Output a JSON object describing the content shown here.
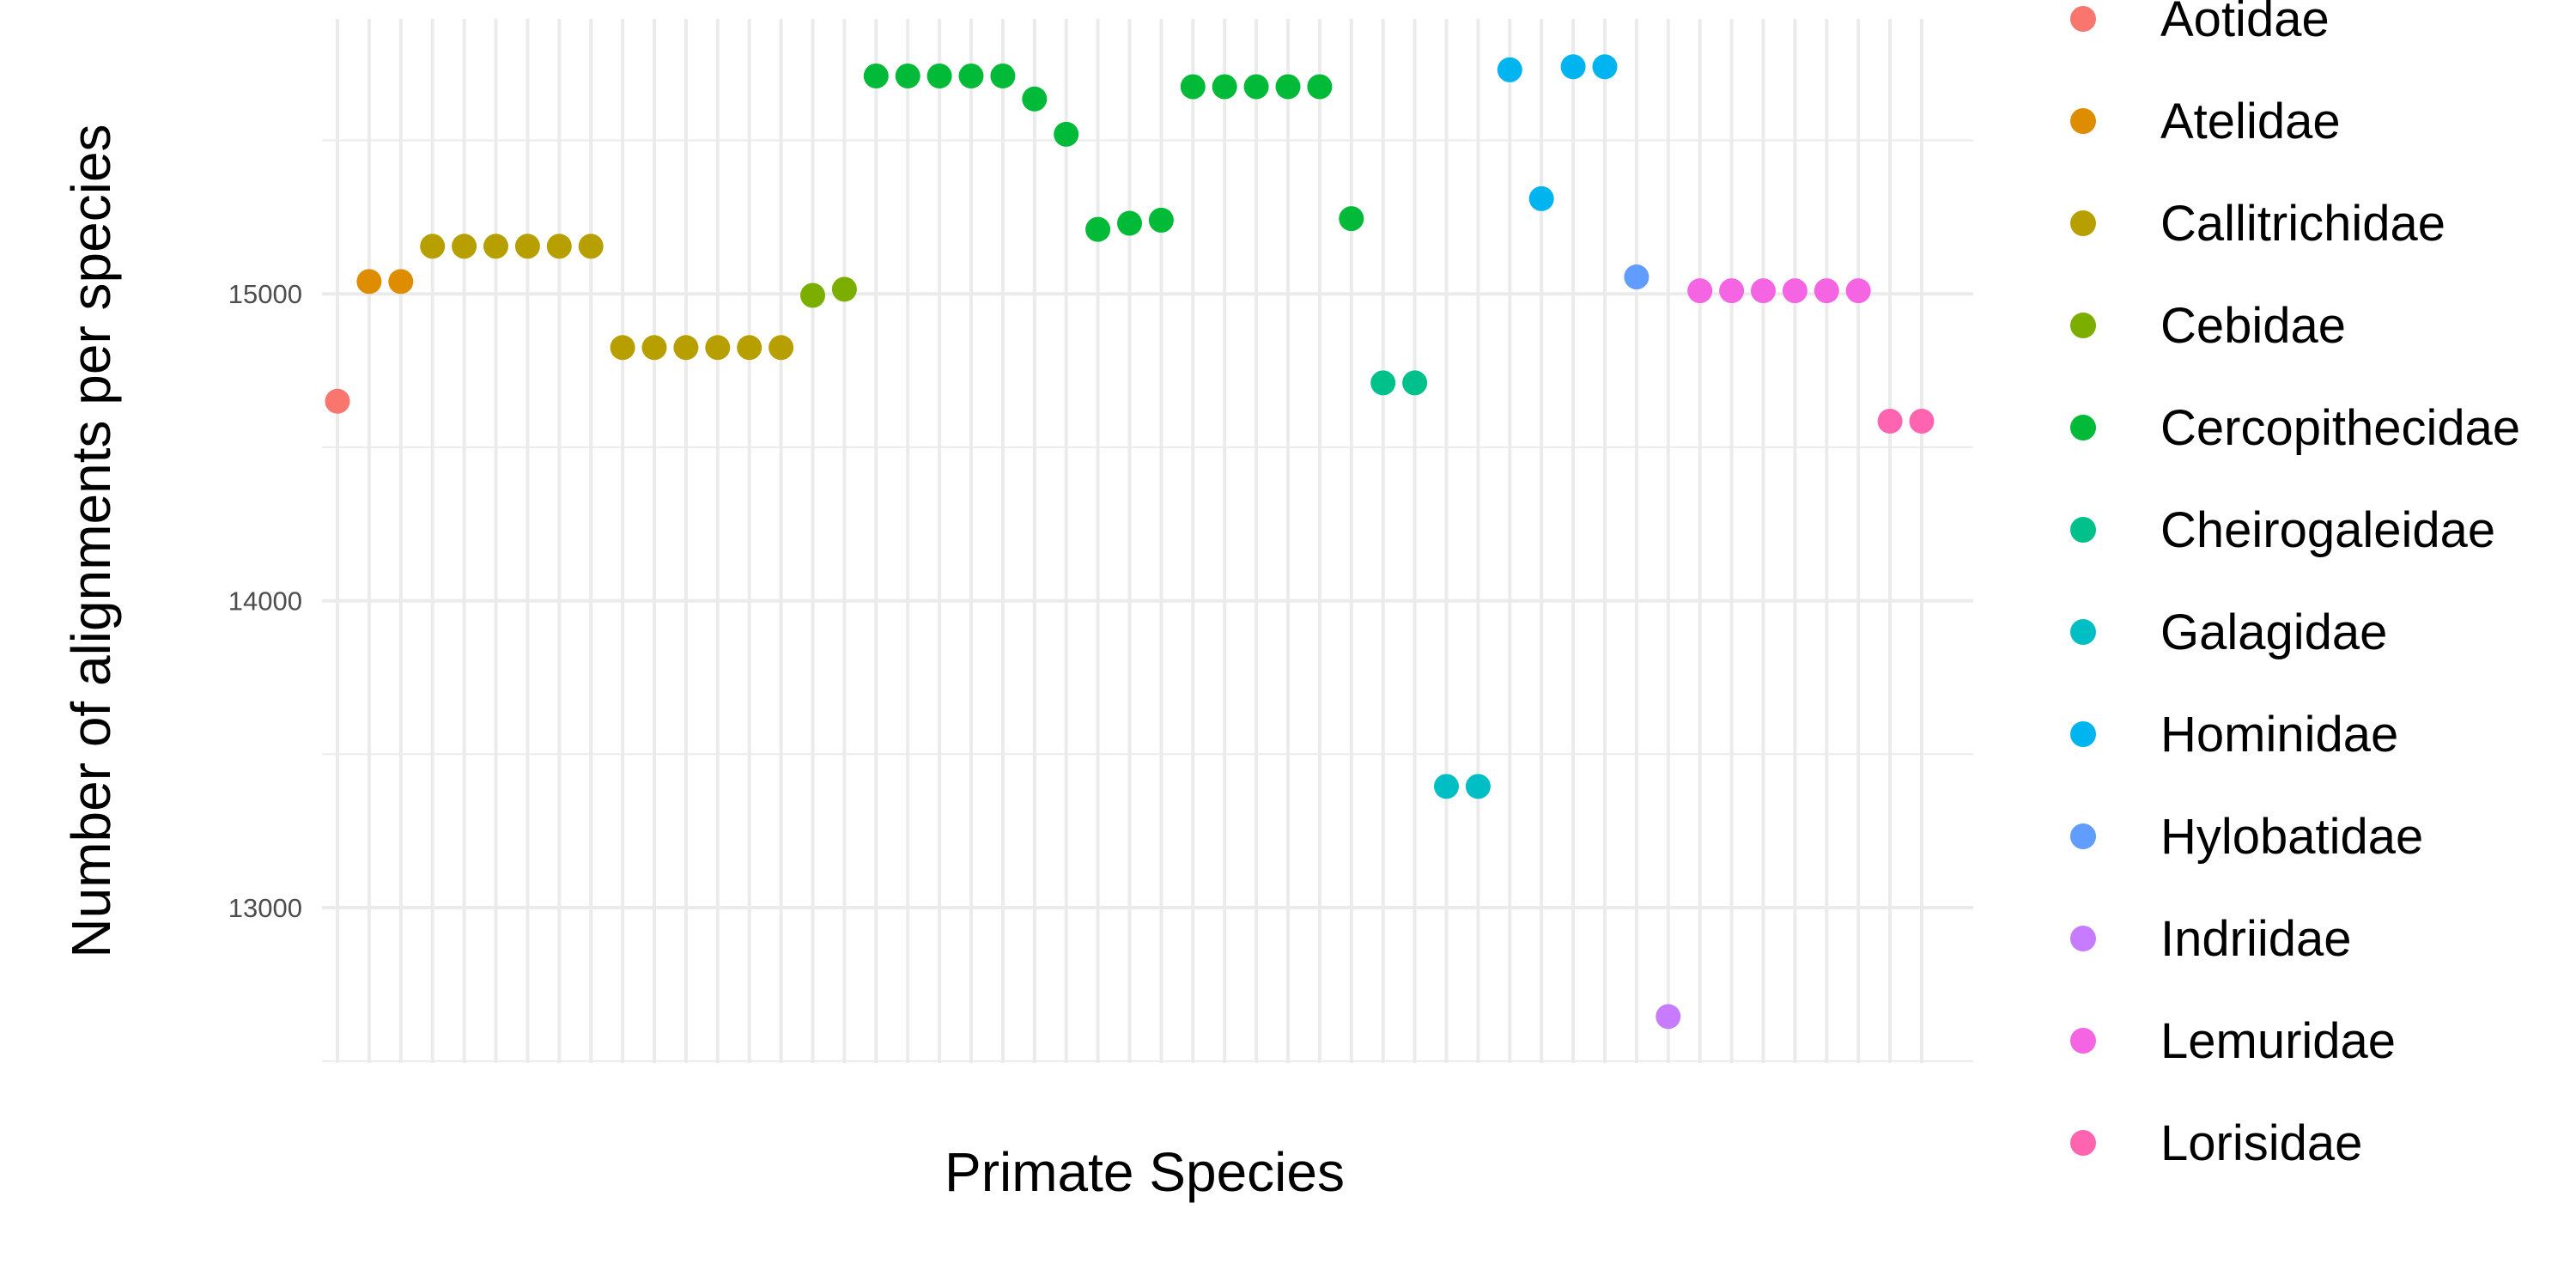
{
  "chart_data": {
    "type": "scatter",
    "xlabel": "Primate Species",
    "ylabel": "Number of alignments per species",
    "x_tick_labels_shown": false,
    "ylim": [
      12500,
      15900
    ],
    "y_ticks": [
      13000,
      14000,
      15000
    ],
    "grid": true,
    "legend_position": "right",
    "series": [
      {
        "name": "Aotidae",
        "color": "#F8766D",
        "x": [
          1
        ],
        "y": [
          14650
        ]
      },
      {
        "name": "Atelidae",
        "color": "#DE8C00",
        "x": [
          2,
          3
        ],
        "y": [
          15040,
          15040
        ]
      },
      {
        "name": "Callitrichidae",
        "color": "#B79F00",
        "x": [
          4,
          5,
          6,
          7,
          8,
          9,
          10,
          11,
          12,
          13,
          14,
          15
        ],
        "y": [
          15155,
          15155,
          15155,
          15155,
          15155,
          15155,
          14825,
          14825,
          14825,
          14825,
          14825,
          14825
        ]
      },
      {
        "name": "Cebidae",
        "color": "#7CAE00",
        "x": [
          16,
          17
        ],
        "y": [
          14995,
          15015
        ]
      },
      {
        "name": "Cercopithecidae",
        "color": "#00BA38",
        "x": [
          18,
          19,
          20,
          21,
          22,
          23,
          24,
          25,
          26,
          27,
          28,
          29,
          30,
          31,
          32,
          33
        ],
        "y": [
          15710,
          15710,
          15710,
          15710,
          15710,
          15635,
          15520,
          15210,
          15230,
          15240,
          15675,
          15675,
          15675,
          15675,
          15675,
          15245
        ]
      },
      {
        "name": "Cheirogaleidae",
        "color": "#00C08B",
        "x": [
          34,
          35
        ],
        "y": [
          14710,
          14710
        ]
      },
      {
        "name": "Galagidae",
        "color": "#00BFC4",
        "x": [
          36,
          37
        ],
        "y": [
          13395,
          13395
        ]
      },
      {
        "name": "Hominidae",
        "color": "#00B4F0",
        "x": [
          38,
          39,
          40,
          41
        ],
        "y": [
          15730,
          15310,
          15740,
          15740
        ]
      },
      {
        "name": "Hylobatidae",
        "color": "#619CFF",
        "x": [
          42
        ],
        "y": [
          15055
        ]
      },
      {
        "name": "Indriidae",
        "color": "#C77CFF",
        "x": [
          43
        ],
        "y": [
          12645
        ]
      },
      {
        "name": "Lemuridae",
        "color": "#F564E3",
        "x": [
          44,
          45,
          46,
          47,
          48,
          49
        ],
        "y": [
          15010,
          15010,
          15010,
          15010,
          15010,
          15010
        ]
      },
      {
        "name": "Lorisidae",
        "color": "#FF64B0",
        "x": [
          50,
          51
        ],
        "y": [
          14585,
          14585
        ]
      }
    ]
  }
}
